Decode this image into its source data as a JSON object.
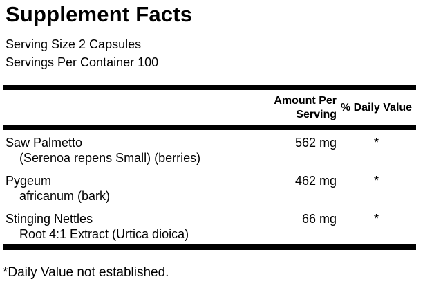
{
  "panel": {
    "title": "Supplement Facts",
    "serving_size": "Serving Size 2 Capsules",
    "servings_per_container": "Servings Per Container 100",
    "columns": {
      "amount": "Amount Per Serving",
      "daily_value": "% Daily Value"
    },
    "rows": [
      {
        "name": "Saw Palmetto",
        "detail": "(Serenoa repens Small) (berries)",
        "amount": "562 mg",
        "daily_value": "*"
      },
      {
        "name": "Pygeum",
        "detail": "africanum (bark)",
        "amount": "462 mg",
        "daily_value": "*"
      },
      {
        "name": "Stinging Nettles",
        "detail": "Root 4:1 Extract (Urtica dioica)",
        "amount": "66 mg",
        "daily_value": "*"
      }
    ],
    "footnote": "*Daily Value not established."
  },
  "colors": {
    "text": "#000000",
    "thick_divider": "#000000",
    "row_separator": "#c9c9c9",
    "background": "#ffffff"
  }
}
